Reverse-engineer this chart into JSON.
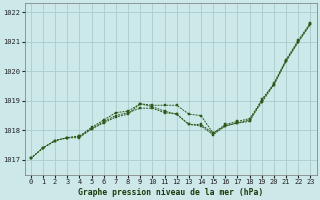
{
  "title": "Graphe pression niveau de la mer (hPa)",
  "background_color": "#cce8e8",
  "grid_color": "#aacccc",
  "line_color": "#2d5a1b",
  "marker_color": "#2d5a1b",
  "xlim": [
    -0.5,
    23.5
  ],
  "ylim": [
    1016.5,
    1022.3
  ],
  "yticks": [
    1017,
    1018,
    1019,
    1020,
    1021,
    1022
  ],
  "xticks": [
    0,
    1,
    2,
    3,
    4,
    5,
    6,
    7,
    8,
    9,
    10,
    11,
    12,
    13,
    14,
    15,
    16,
    17,
    18,
    19,
    20,
    21,
    22,
    23
  ],
  "series": [
    [
      1017.05,
      1017.4,
      1017.65,
      1017.75,
      1017.75,
      1018.05,
      1018.25,
      1018.45,
      1018.55,
      1018.9,
      1018.85,
      1018.85,
      1018.85,
      1018.55,
      1018.5,
      1017.9,
      1018.15,
      1018.25,
      1018.3,
      1019.05,
      1019.55,
      1020.35,
      1021.0,
      1021.6
    ],
    [
      1017.05,
      1017.4,
      1017.65,
      1017.75,
      1017.8,
      1018.05,
      1018.3,
      1018.5,
      1018.6,
      1018.75,
      1018.75,
      1018.6,
      1018.55,
      1018.2,
      1018.15,
      1017.85,
      1018.15,
      1018.25,
      1018.35,
      1018.95,
      1019.55,
      1020.35,
      1021.0,
      1021.6
    ],
    [
      1017.05,
      1017.4,
      1017.65,
      1017.75,
      1017.8,
      1018.1,
      1018.35,
      1018.6,
      1018.65,
      1018.9,
      1018.8,
      1018.65,
      1018.55,
      1018.2,
      1018.2,
      1017.9,
      1018.2,
      1018.3,
      1018.4,
      1019.0,
      1019.6,
      1020.4,
      1021.05,
      1021.65
    ]
  ]
}
